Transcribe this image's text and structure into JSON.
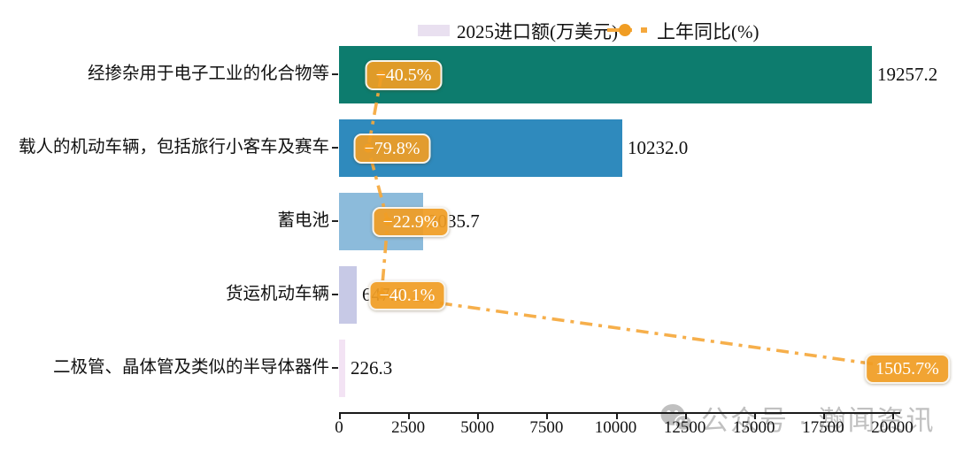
{
  "legend": {
    "bar_series_label": "2025进口额(万美元)",
    "line_series_label": "上年同比(%)"
  },
  "watermark": {
    "icon": "wechat-logo",
    "text": "公众号 · 瀚闻资讯"
  },
  "colors": {
    "bar_colors": [
      "#0d7c6e",
      "#2f8abd",
      "#8cbbdb",
      "#c7c9e6",
      "#f3e3f4"
    ],
    "legend_swatch": "#e9e0f0",
    "line_color": "#f5a83c",
    "badge_color": "#f09d24",
    "axis_color": "#1a1a1a",
    "watermark_color": "#9b9b9b"
  },
  "chart_data": {
    "type": "bar",
    "orientation": "horizontal",
    "legend_position": "top",
    "xlim": [
      0,
      20000
    ],
    "xtick_labels": [
      "0",
      "2500",
      "5000",
      "7500",
      "10000",
      "12500",
      "15000",
      "17500",
      "20000"
    ],
    "xtick_values": [
      0,
      2500,
      5000,
      7500,
      10000,
      12500,
      15000,
      17500,
      20000
    ],
    "categories": [
      "经掺杂用于电子工业的化合物等",
      "载人的机动车辆，包括旅行小客车及赛车",
      "蓄电池",
      "货运机动车辆",
      "二极管、晶体管及类似的半导体器件"
    ],
    "series": [
      {
        "name": "2025进口额(万美元)",
        "values": [
          19257.2,
          10232.0,
          3035.7,
          647.8,
          226.3
        ]
      },
      {
        "name": "上年同比(%)",
        "values": [
          -40.5,
          -79.8,
          -22.9,
          -40.1,
          1505.7
        ]
      }
    ],
    "rows": [
      {
        "label": "经掺杂用于电子工业的化合物等",
        "value": 19257.2,
        "value_label": "19257.2",
        "pct": -40.5,
        "pct_label": "−40.5%"
      },
      {
        "label": "载人的机动车辆，包括旅行小客车及赛车",
        "value": 10232.0,
        "value_label": "10232.0",
        "pct": -79.8,
        "pct_label": "−79.8%"
      },
      {
        "label": "蓄电池",
        "value": 3035.7,
        "value_label": "3035.7",
        "pct": -22.9,
        "pct_label": "−22.9%"
      },
      {
        "label": "货运机动车辆",
        "value": 647.8,
        "value_label": "647.8",
        "pct": -40.1,
        "pct_label": "−40.1%"
      },
      {
        "label": "二极管、晶体管及类似的半导体器件",
        "value": 226.3,
        "value_label": "226.3",
        "pct": 1505.7,
        "pct_label": "1505.7%"
      }
    ]
  }
}
